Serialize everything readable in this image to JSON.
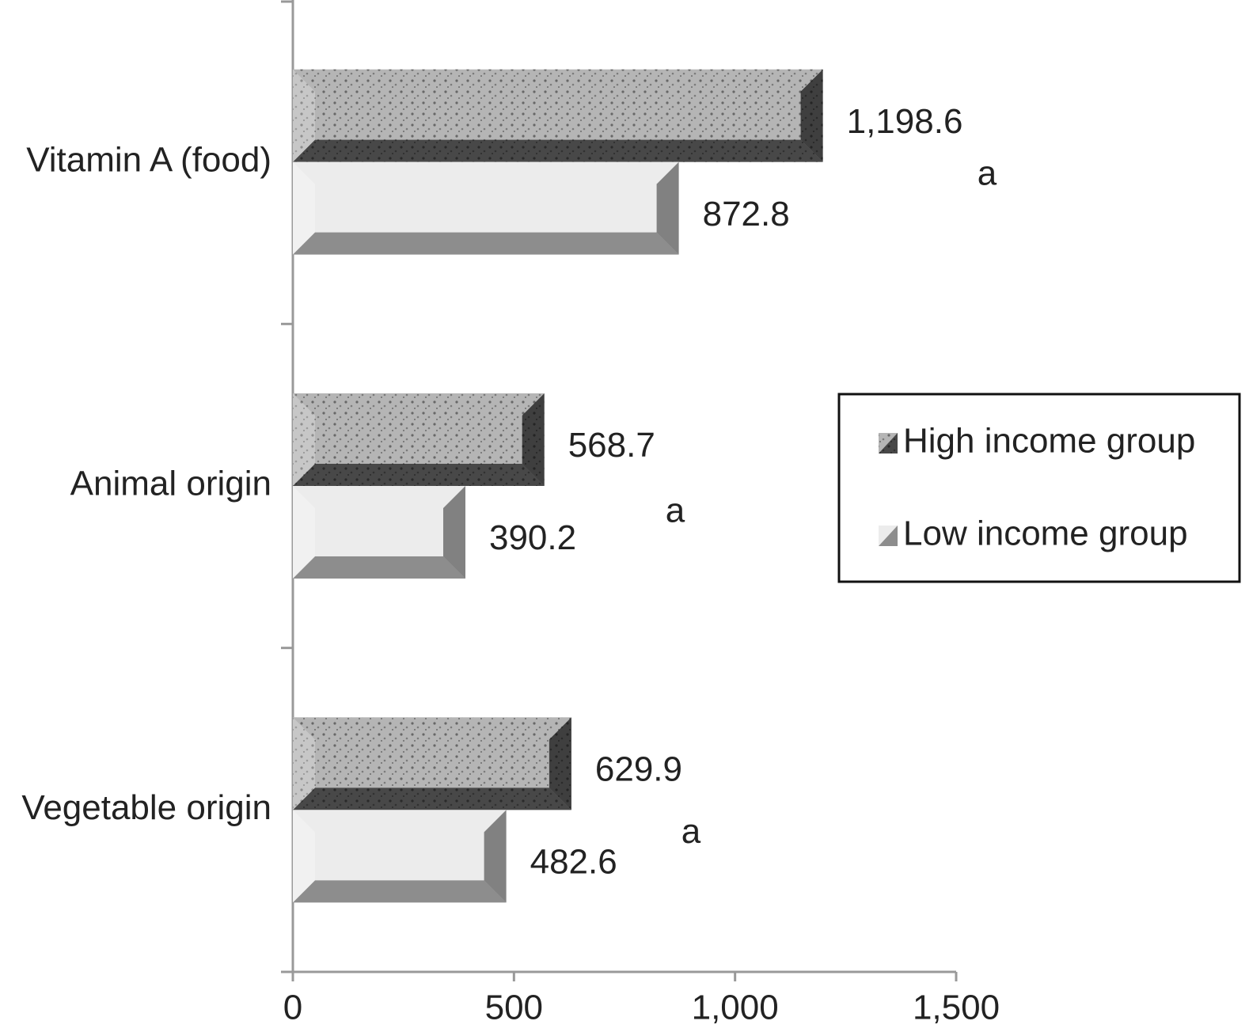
{
  "chart_data": {
    "type": "bar",
    "orientation": "horizontal",
    "categories": [
      "Vitamin A (food)",
      "Animal origin",
      "Vegetable origin"
    ],
    "series": [
      {
        "name": "High income group",
        "color": "#b5b5b5",
        "values": [
          1198.6,
          568.7,
          629.9
        ],
        "value_labels": [
          "1,198.6",
          "568.7",
          "629.9"
        ]
      },
      {
        "name": "Low income group",
        "color": "#ececec",
        "values": [
          872.8,
          390.2,
          482.6
        ],
        "value_labels": [
          "872.8",
          "390.2",
          "482.6"
        ]
      }
    ],
    "annotations": [
      "a",
      "a",
      "a"
    ],
    "xlim": [
      0,
      1500
    ],
    "xticks": [
      0,
      500,
      {
        "value": 1000,
        "label": "1,000"
      },
      {
        "value": 1500,
        "label": "1,500"
      }
    ],
    "legend": "right"
  }
}
